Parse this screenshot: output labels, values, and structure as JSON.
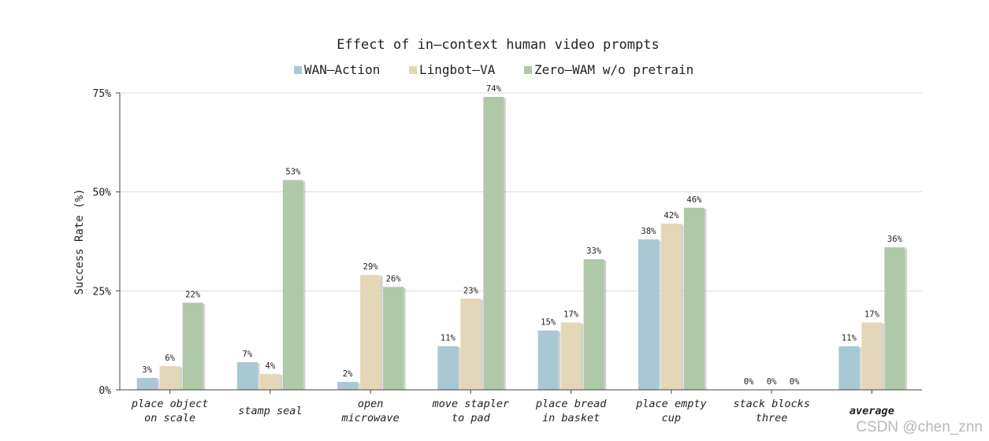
{
  "chart_data": {
    "type": "bar",
    "title": "Effect of in–context human video prompts",
    "ylabel": "Success Rate (%)",
    "xlabel": "",
    "ylim": [
      0,
      75
    ],
    "yticks": [
      0,
      25,
      50,
      75
    ],
    "ytick_labels": [
      "0%",
      "25%",
      "50%",
      "75%"
    ],
    "grid": "horizontal",
    "legend_position": "top-center",
    "categories": [
      [
        "place object",
        "on scale"
      ],
      [
        "stamp seal"
      ],
      [
        "open",
        "microwave"
      ],
      [
        "move stapler",
        "to pad"
      ],
      [
        "place bread",
        "in basket"
      ],
      [
        "place empty",
        "cup"
      ],
      [
        "stack blocks",
        "three"
      ],
      [
        "average"
      ]
    ],
    "series": [
      {
        "name": "WAN–Action",
        "color": "#a8c8d4",
        "values": [
          3,
          7,
          2,
          11,
          15,
          38,
          0,
          11
        ],
        "labels": [
          "3%",
          "7%",
          "2%",
          "11%",
          "15%",
          "38%",
          "0%",
          "11%"
        ]
      },
      {
        "name": "Lingbot–VA",
        "color": "#e3d7b7",
        "values": [
          6,
          4,
          29,
          23,
          17,
          42,
          0,
          17
        ],
        "labels": [
          "6%",
          "4%",
          "29%",
          "23%",
          "17%",
          "42%",
          "0%",
          "17%"
        ]
      },
      {
        "name": "Zero–WAM w/o pretrain",
        "color": "#afc9a8",
        "values": [
          22,
          53,
          26,
          74,
          33,
          46,
          0,
          36
        ],
        "labels": [
          "22%",
          "53%",
          "26%",
          "74%",
          "33%",
          "46%",
          "0%",
          "36%"
        ]
      }
    ],
    "bold_category": "average"
  },
  "watermark": "CSDN @chen_znn"
}
